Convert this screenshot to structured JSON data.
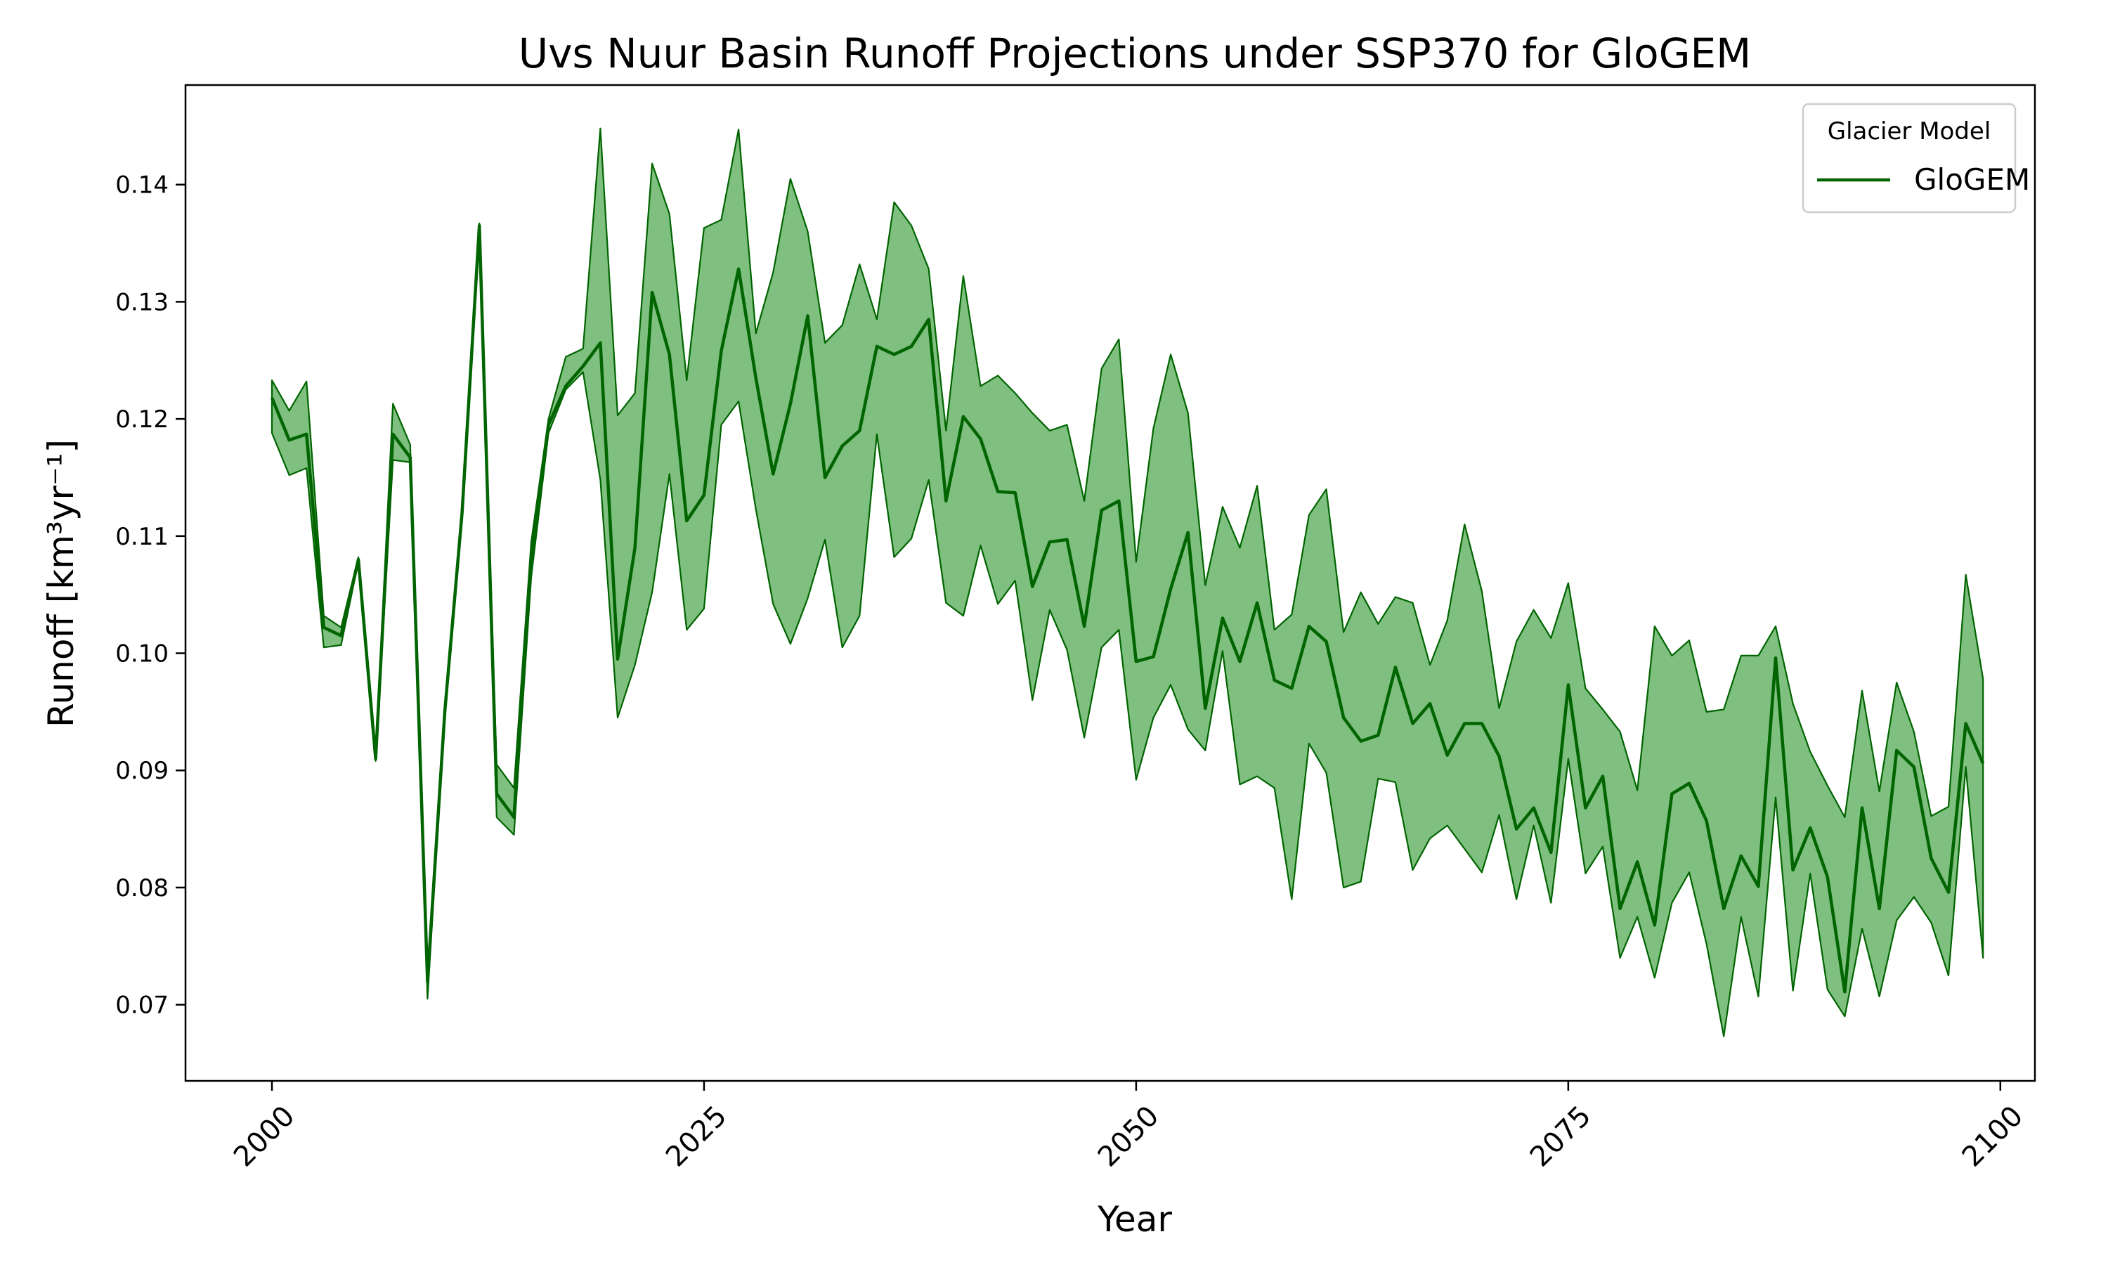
{
  "chart_data": {
    "type": "area",
    "title": "Uvs Nuur Basin Runoff Projections under SSP370 for GloGEM",
    "xlabel": "Year",
    "ylabel": "Runoff [km³yr⁻¹]",
    "xlim": [
      1995,
      2102
    ],
    "ylim": [
      0.0635,
      0.1485
    ],
    "xticks": [
      2000,
      2025,
      2050,
      2075,
      2100
    ],
    "xtick_labels": [
      "2000",
      "2025",
      "2050",
      "2075",
      "2100"
    ],
    "yticks": [
      0.07,
      0.08,
      0.09,
      0.1,
      0.11,
      0.12,
      0.13,
      0.14
    ],
    "ytick_labels": [
      "0.07",
      "0.08",
      "0.09",
      "0.10",
      "0.11",
      "0.12",
      "0.13",
      "0.14"
    ],
    "grid": false,
    "legend": {
      "title": "Glacier Model",
      "placement": "top-right"
    },
    "colors": {
      "line": "#006400",
      "band_fill": "#7fbf7f",
      "band_edge": "#006400"
    },
    "x_start": 2000,
    "x_end": 2099,
    "series": [
      {
        "name": "GloGEM",
        "mean": [
          0.1218,
          0.1182,
          0.1187,
          0.1022,
          0.1015,
          0.108,
          0.091,
          0.1187,
          0.1167,
          0.072,
          0.095,
          0.112,
          0.1365,
          0.088,
          0.086,
          0.108,
          0.1195,
          0.1228,
          0.1245,
          0.1265,
          0.0995,
          0.109,
          0.1308,
          0.1255,
          0.1113,
          0.1135,
          0.1258,
          0.1328,
          0.1235,
          0.1153,
          0.1213,
          0.1288,
          0.115,
          0.1177,
          0.119,
          0.1262,
          0.1255,
          0.1262,
          0.1285,
          0.113,
          0.1202,
          0.1183,
          0.1138,
          0.1137,
          0.1057,
          0.1095,
          0.1097,
          0.1023,
          0.1122,
          0.113,
          0.0993,
          0.0997,
          0.1055,
          0.1103,
          0.0953,
          0.103,
          0.0993,
          0.1043,
          0.0977,
          0.097,
          0.1023,
          0.101,
          0.0945,
          0.0925,
          0.093,
          0.0988,
          0.094,
          0.0957,
          0.0913,
          0.094,
          0.094,
          0.0912,
          0.085,
          0.0868,
          0.083,
          0.0973,
          0.0868,
          0.0895,
          0.0782,
          0.0822,
          0.0768,
          0.088,
          0.0889,
          0.0857,
          0.0782,
          0.0827,
          0.0801,
          0.0996,
          0.0815,
          0.0851,
          0.0809,
          0.0711,
          0.0868,
          0.0782,
          0.0917,
          0.0903,
          0.0825,
          0.0796,
          0.094,
          0.0906
        ],
        "upper": [
          0.1233,
          0.1207,
          0.1232,
          0.1032,
          0.1022,
          0.1082,
          0.0912,
          0.1213,
          0.1178,
          0.0722,
          0.0952,
          0.1122,
          0.1367,
          0.0905,
          0.0885,
          0.1095,
          0.12,
          0.1253,
          0.126,
          0.1448,
          0.1203,
          0.1222,
          0.1418,
          0.1375,
          0.1233,
          0.1363,
          0.137,
          0.1447,
          0.1273,
          0.1325,
          0.1405,
          0.136,
          0.1265,
          0.128,
          0.1332,
          0.1285,
          0.1385,
          0.1365,
          0.1328,
          0.119,
          0.1322,
          0.1228,
          0.1237,
          0.1222,
          0.1205,
          0.119,
          0.1195,
          0.113,
          0.1243,
          0.1268,
          0.1078,
          0.1192,
          0.1255,
          0.1205,
          0.1058,
          0.1125,
          0.109,
          0.1143,
          0.102,
          0.1033,
          0.1118,
          0.114,
          0.1018,
          0.1052,
          0.1025,
          0.1048,
          0.1043,
          0.099,
          0.1028,
          0.111,
          0.1053,
          0.0953,
          0.101,
          0.1037,
          0.1013,
          0.106,
          0.097,
          0.0952,
          0.0933,
          0.0883,
          0.1023,
          0.0998,
          0.1011,
          0.095,
          0.0952,
          0.0998,
          0.0998,
          0.1023,
          0.0957,
          0.0916,
          0.0887,
          0.086,
          0.0968,
          0.0882,
          0.0975,
          0.0933,
          0.0861,
          0.0869,
          0.1067,
          0.0978
        ],
        "lower": [
          0.1188,
          0.1152,
          0.1158,
          0.1005,
          0.1007,
          0.1078,
          0.0908,
          0.1165,
          0.1163,
          0.0705,
          0.0948,
          0.1118,
          0.1362,
          0.086,
          0.0845,
          0.1065,
          0.1188,
          0.1225,
          0.124,
          0.1148,
          0.0945,
          0.099,
          0.1052,
          0.1153,
          0.102,
          0.1038,
          0.1195,
          0.1215,
          0.1123,
          0.1042,
          0.1008,
          0.1047,
          0.1097,
          0.1005,
          0.1032,
          0.1187,
          0.1082,
          0.1098,
          0.1148,
          0.1043,
          0.1032,
          0.1092,
          0.1042,
          0.1062,
          0.096,
          0.1037,
          0.1003,
          0.0928,
          0.1005,
          0.102,
          0.0892,
          0.0945,
          0.0973,
          0.0935,
          0.0917,
          0.1002,
          0.0888,
          0.0895,
          0.0885,
          0.079,
          0.0923,
          0.0898,
          0.08,
          0.0805,
          0.0893,
          0.089,
          0.0815,
          0.0842,
          0.0853,
          0.0833,
          0.0813,
          0.0862,
          0.079,
          0.0853,
          0.0787,
          0.091,
          0.0812,
          0.0835,
          0.074,
          0.0775,
          0.0723,
          0.0787,
          0.0813,
          0.0752,
          0.0673,
          0.0775,
          0.0707,
          0.0877,
          0.0712,
          0.0812,
          0.0713,
          0.069,
          0.0765,
          0.0707,
          0.0772,
          0.0792,
          0.077,
          0.0725,
          0.0903,
          0.074
        ]
      }
    ]
  }
}
